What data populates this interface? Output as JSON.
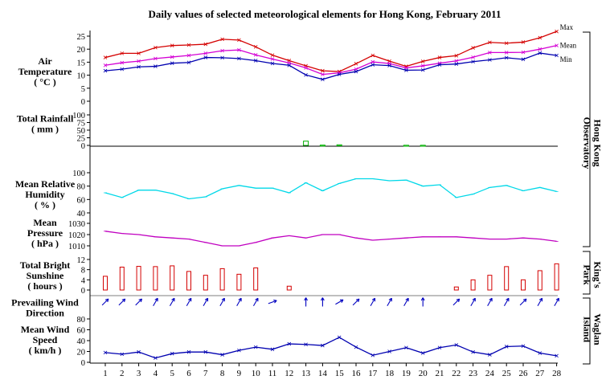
{
  "chart_data": {
    "type": "line",
    "title": "Daily values of selected meteorological elements for Hong Kong, February 2011",
    "days": [
      1,
      2,
      3,
      4,
      5,
      6,
      7,
      8,
      9,
      10,
      11,
      12,
      13,
      14,
      15,
      16,
      17,
      18,
      19,
      20,
      21,
      22,
      23,
      24,
      25,
      26,
      27,
      28
    ],
    "panels": {
      "temperature": {
        "label": [
          "Air",
          "Temperature",
          "( °C )"
        ],
        "ylim": [
          0,
          25
        ],
        "ticks": [
          "25",
          "20",
          "15",
          "10",
          "5",
          "0"
        ],
        "series": [
          {
            "name": "Max",
            "color": "#d40000",
            "values": [
              16.8,
              18.4,
              18.4,
              20.6,
              21.4,
              21.6,
              21.9,
              23.8,
              23.5,
              20.9,
              17.7,
              15.6,
              13.6,
              11.7,
              11.4,
              14.4,
              17.6,
              15.4,
              13.4,
              15.3,
              16.8,
              17.5,
              20.5,
              22.6,
              22.3,
              22.7,
              24.4,
              26.8
            ]
          },
          {
            "name": "Mean",
            "color": "#d400d4",
            "values": [
              13.8,
              14.8,
              15.4,
              16.4,
              17.0,
              17.6,
              18.4,
              19.4,
              19.7,
              17.8,
              16.2,
              14.7,
              12.8,
              10.3,
              10.9,
              12.3,
              15.1,
              14.5,
              12.8,
              13.6,
              14.6,
              15.5,
              16.9,
              18.7,
              18.7,
              18.8,
              20.0,
              21.4
            ]
          },
          {
            "name": "Min",
            "color": "#0000b0",
            "values": [
              11.7,
              12.3,
              13.2,
              13.4,
              14.6,
              14.9,
              16.8,
              16.7,
              16.4,
              15.6,
              14.5,
              13.8,
              10.1,
              8.4,
              10.3,
              11.4,
              14.0,
              13.7,
              11.9,
              12.0,
              14.0,
              14.3,
              15.2,
              15.9,
              16.7,
              16.1,
              18.5,
              17.6
            ]
          }
        ]
      },
      "rainfall": {
        "label": [
          "Total Rainfall",
          "( mm )"
        ],
        "ylim": [
          0,
          100
        ],
        "ticks": [
          "100",
          "75",
          "50",
          "25",
          "0"
        ],
        "color": "#00b000",
        "values": [
          0,
          0,
          0,
          0,
          0,
          0,
          0,
          0,
          0,
          0,
          0,
          0,
          14,
          1,
          2,
          0,
          0,
          0,
          0.5,
          0.5,
          0,
          0,
          0,
          0,
          0,
          0,
          0,
          0
        ]
      },
      "humidity": {
        "label": [
          "Mean Relative",
          "Humidity",
          "( % )"
        ],
        "ylim": [
          40,
          100
        ],
        "ticks": [
          "100",
          "80",
          "60",
          "40"
        ],
        "color": "#00d8e8",
        "values": [
          70,
          63,
          74,
          74,
          69,
          61,
          64,
          76,
          81,
          77,
          77,
          70,
          85,
          73,
          84,
          91,
          91,
          88,
          89,
          80,
          82,
          63,
          68,
          78,
          81,
          73,
          78,
          72
        ]
      },
      "pressure": {
        "label": [
          "Mean",
          "Pressure",
          "( hPa )"
        ],
        "ylim": [
          1010,
          1030
        ],
        "ticks": [
          "1030",
          "1020",
          "1010"
        ],
        "color": "#c000c0",
        "values": [
          1023,
          1021,
          1020,
          1018,
          1017,
          1016,
          1013,
          1010,
          1010,
          1013,
          1017,
          1019,
          1017,
          1020,
          1020,
          1017,
          1015,
          1016,
          1017,
          1018,
          1018,
          1018,
          1017,
          1016,
          1016,
          1017,
          1016,
          1014
        ]
      },
      "sunshine": {
        "label": [
          "Total Bright",
          "Sunshine",
          "( hours )"
        ],
        "ylim": [
          0,
          12
        ],
        "ticks": [
          "12",
          "8",
          "4",
          "0"
        ],
        "color": "#d40000",
        "values": [
          5.4,
          9.0,
          9.3,
          9.2,
          9.5,
          7.3,
          5.8,
          8.4,
          6.2,
          8.7,
          0,
          1.5,
          0,
          0,
          0,
          0,
          0,
          0,
          0,
          0,
          0,
          1.2,
          4.0,
          5.8,
          9.2,
          4.0,
          7.6,
          10.3
        ]
      },
      "wind_direction": {
        "label": [
          "Prevailing Wind",
          "Direction"
        ],
        "color": "#0000c0",
        "directions_deg": [
          225,
          225,
          225,
          210,
          210,
          210,
          210,
          210,
          210,
          210,
          250,
          null,
          180,
          180,
          240,
          225,
          210,
          210,
          210,
          180,
          null,
          225,
          210,
          210,
          210,
          225,
          210,
          210
        ]
      },
      "wind_speed": {
        "label": [
          "Mean Wind",
          "Speed",
          "( km/h )"
        ],
        "ylim": [
          0,
          80
        ],
        "ticks": [
          "80",
          "60",
          "40",
          "20",
          "0"
        ],
        "color": "#0000b0",
        "values": [
          18,
          15,
          19,
          8,
          16,
          19,
          19,
          14,
          22,
          28,
          24,
          34,
          33,
          31,
          46,
          28,
          13,
          20,
          27,
          17,
          27,
          32,
          19,
          14,
          29,
          30,
          17,
          12
        ]
      }
    },
    "station_labels": {
      "hko": [
        "Hong Kong",
        "Observatory"
      ],
      "kings_park": [
        "King's",
        "Park"
      ],
      "waglan": [
        "Waglan",
        "Island"
      ]
    }
  }
}
